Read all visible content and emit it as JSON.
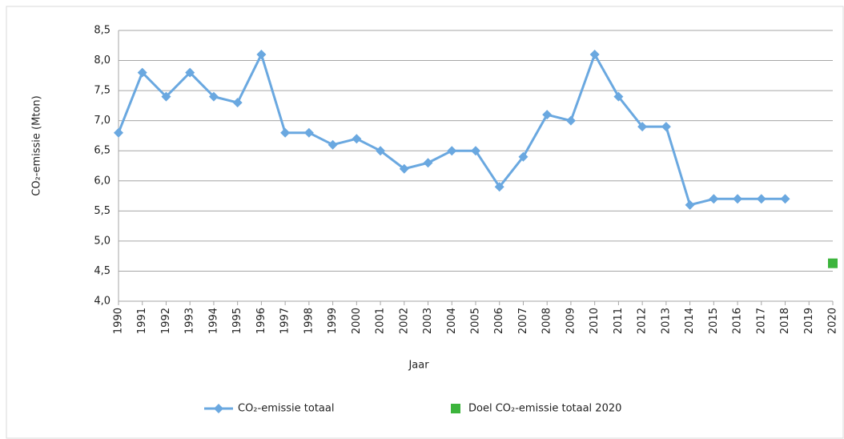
{
  "chart_data": {
    "type": "line",
    "ylabel": "CO₂-emissie (Mton)",
    "xlabel": "Jaar",
    "categories": [
      "1990",
      "1991",
      "1992",
      "1993",
      "1994",
      "1995",
      "1996",
      "1997",
      "1998",
      "1999",
      "2000",
      "2001",
      "2002",
      "2003",
      "2004",
      "2005",
      "2006",
      "2007",
      "2008",
      "2009",
      "2010",
      "2011",
      "2012",
      "2013",
      "2014",
      "2015",
      "2016",
      "2017",
      "2018",
      "2019",
      "2020"
    ],
    "series": [
      {
        "name": "CO₂-emissie totaal",
        "color": "#6aa8e0",
        "marker": "diamond",
        "values": [
          6.8,
          7.8,
          7.4,
          7.8,
          7.4,
          7.3,
          8.1,
          6.8,
          6.8,
          6.6,
          6.7,
          6.5,
          6.2,
          6.3,
          6.5,
          6.5,
          5.9,
          6.4,
          7.1,
          7.0,
          8.1,
          7.4,
          6.9,
          6.9,
          5.6,
          5.7,
          5.7,
          5.7,
          5.7,
          null,
          null
        ]
      },
      {
        "name": "Doel CO₂-emissie totaal 2020",
        "color": "#3cb43c",
        "marker": "square",
        "values": [
          null,
          null,
          null,
          null,
          null,
          null,
          null,
          null,
          null,
          null,
          null,
          null,
          null,
          null,
          null,
          null,
          null,
          null,
          null,
          null,
          null,
          null,
          null,
          null,
          null,
          null,
          null,
          null,
          null,
          null,
          4.63
        ]
      }
    ],
    "ylim": [
      4.0,
      8.5
    ],
    "yticks": [
      {
        "value": 4.0,
        "label": "4,0"
      },
      {
        "value": 4.5,
        "label": "4,5"
      },
      {
        "value": 5.0,
        "label": "5,0"
      },
      {
        "value": 5.5,
        "label": "5,5"
      },
      {
        "value": 6.0,
        "label": "6,0"
      },
      {
        "value": 6.5,
        "label": "6,5"
      },
      {
        "value": 7.0,
        "label": "7,0"
      },
      {
        "value": 7.5,
        "label": "7,5"
      },
      {
        "value": 8.0,
        "label": "8,0"
      },
      {
        "value": 8.5,
        "label": "8,5"
      }
    ],
    "grid": true,
    "legend": "bottom"
  }
}
